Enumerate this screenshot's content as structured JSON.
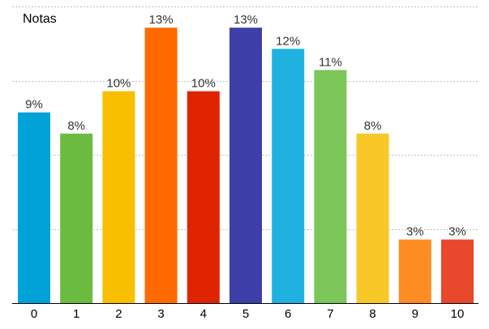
{
  "chart_data": {
    "type": "bar",
    "title": "Notas",
    "xlabel": "",
    "ylabel": "",
    "categories": [
      "0",
      "1",
      "2",
      "3",
      "4",
      "5",
      "6",
      "7",
      "8",
      "9",
      "10"
    ],
    "values": [
      9,
      8,
      10,
      13,
      10,
      13,
      12,
      11,
      8,
      3,
      3
    ],
    "value_labels": [
      "9%",
      "8%",
      "10%",
      "13%",
      "10%",
      "13%",
      "12%",
      "11%",
      "8%",
      "3%",
      "3%"
    ],
    "ylim": [
      0,
      14
    ],
    "grid": true,
    "legend": "none",
    "colors": [
      "#00a2d7",
      "#6cbb41",
      "#f7bf00",
      "#ff6a00",
      "#e02402",
      "#3f3fa9",
      "#1fb2e0",
      "#7dc65a",
      "#f7c827",
      "#ff8c23",
      "#e8482b"
    ],
    "axis_color": "#000000",
    "grid_color": "#c0c0c0"
  }
}
